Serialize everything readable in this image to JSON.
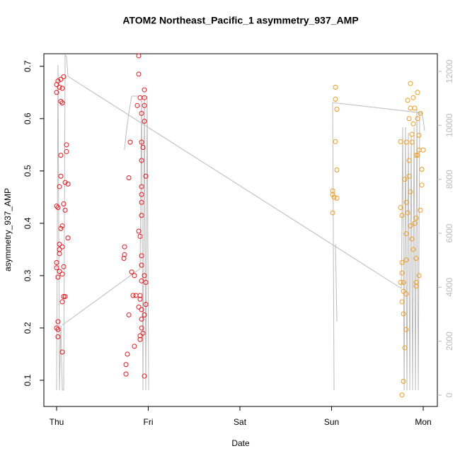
{
  "chart_data": {
    "type": "scatter",
    "title": "ATOM2 Northeast_Pacific_1 asymmetry_937_AMP",
    "xlabel": "Date",
    "ylabel": "asymmetry_937_AMP",
    "xlim": [
      -0.139,
      4.154
    ],
    "xticks": [
      {
        "value": 0,
        "label": "Thu"
      },
      {
        "value": 1,
        "label": "Fri"
      },
      {
        "value": 2,
        "label": "Sat"
      },
      {
        "value": 3,
        "label": "Sun"
      },
      {
        "value": 4,
        "label": "Mon"
      }
    ],
    "ylim": [
      0.05,
      0.724
    ],
    "yticks": [
      0.1,
      0.2,
      0.3,
      0.4,
      0.5,
      0.6,
      0.7
    ],
    "y2lim": [
      -419,
      12655
    ],
    "y2ticks": [
      0,
      2000,
      4000,
      6000,
      8000,
      10000,
      12000
    ],
    "y2color": "#bbbbbb",
    "series": [
      {
        "color": "#e8141c",
        "x": [
          0,
          0.015,
          0.046,
          0.077,
          0.031,
          0.062,
          0,
          0.046,
          0.062,
          0.046,
          0.108,
          0.108,
          0.046,
          0.031,
          0.093,
          0.124,
          0.077,
          0,
          0.015,
          0.093,
          0.062,
          0.046,
          0.124,
          0.031,
          0.062,
          0.031,
          0.077,
          0,
          0.031,
          0.062,
          0.015,
          0.093,
          0.077,
          0.062,
          0.015,
          0,
          0.015,
          0.015,
          0.062,
          0,
          0.031,
          0.741,
          0.741,
          0.734,
          0.757,
          0.757,
          0.772,
          0.788,
          0.788,
          0.803,
          0.819,
          0.834,
          0.849,
          0.865,
          0.849,
          0.88,
          0.896,
          0.896,
          0.896,
          0.911,
          0.911,
          0.927,
          0.927,
          0.927,
          0.927,
          0.927,
          0.927,
          0.927,
          0.927,
          0.927,
          0.927,
          0.911,
          0.911,
          0.927,
          0.927,
          0.927,
          0.911,
          0.911,
          0.942,
          0.958,
          0.958,
          0.958,
          0.958,
          0.973,
          0.973,
          0.958,
          0.958,
          0.973,
          0.942,
          0.958,
          0.896
        ],
        "values": [
          0.665,
          0.672,
          0.675,
          0.68,
          0.66,
          0.658,
          0.65,
          0.633,
          0.63,
          0.53,
          0.55,
          0.537,
          0.49,
          0.47,
          0.478,
          0.475,
          0.437,
          0.433,
          0.43,
          0.425,
          0.395,
          0.39,
          0.372,
          0.36,
          0.355,
          0.35,
          0.317,
          0.315,
          0.308,
          0.303,
          0.297,
          0.26,
          0.26,
          0.25,
          0.212,
          0.2,
          0.197,
          0.183,
          0.154,
          0.325,
          0.342,
          0.355,
          0.34,
          0.333,
          0.13,
          0.112,
          0.15,
          0.225,
          0.487,
          0.555,
          0.307,
          0.262,
          0.3,
          0.262,
          0.165,
          0.625,
          0.685,
          0.72,
          0.385,
          0.375,
          0.64,
          0.61,
          0.555,
          0.52,
          0.47,
          0.455,
          0.44,
          0.415,
          0.338,
          0.32,
          0.29,
          0.262,
          0.255,
          0.235,
          0.217,
          0.2,
          0.185,
          0.178,
          0.19,
          0.595,
          0.625,
          0.64,
          0.655,
          0.49,
          0.245,
          0.225,
          0.108,
          0.287,
          0.545,
          0.3,
          0.24
        ]
      },
      {
        "color": "#f39a1e",
        "x": [
          3.012,
          3.012,
          3.027,
          3.012,
          3.042,
          3.042,
          3.058,
          3.042,
          3.058,
          3.058,
          3.753,
          3.753,
          3.768,
          3.768,
          3.768,
          3.753,
          3.784,
          3.784,
          3.768,
          3.784,
          3.799,
          3.784,
          3.768,
          3.799,
          3.815,
          3.815,
          3.815,
          3.815,
          3.815,
          3.815,
          3.83,
          3.846,
          3.846,
          3.846,
          3.861,
          3.861,
          3.861,
          3.861,
          3.876,
          3.876,
          3.876,
          3.892,
          3.892,
          3.907,
          3.923,
          3.923,
          3.923,
          3.923,
          3.923,
          3.938,
          3.938,
          3.938,
          3.954,
          3.954,
          3.954,
          3.969,
          3.969,
          3.985,
          3.985,
          4.0,
          3.907,
          3.892,
          3.83
        ],
        "values": [
          0.462,
          0.455,
          0.45,
          0.42,
          0.66,
          0.637,
          0.618,
          0.556,
          0.502,
          0.448,
          0.556,
          0.43,
          0.415,
          0.325,
          0.305,
          0.287,
          0.287,
          0.27,
          0.25,
          0.227,
          0.162,
          0.098,
          0.072,
          0.484,
          0.555,
          0.44,
          0.38,
          0.33,
          0.265,
          0.197,
          0.635,
          0.6,
          0.52,
          0.49,
          0.667,
          0.62,
          0.46,
          0.395,
          0.57,
          0.555,
          0.37,
          0.64,
          0.59,
          0.62,
          0.53,
          0.41,
          0.333,
          0.287,
          0.28,
          0.65,
          0.6,
          0.53,
          0.568,
          0.54,
          0.3,
          0.425,
          0.61,
          0.503,
          0.473,
          0.54,
          0.4,
          0.35,
          0.42
        ]
      },
      {
        "color": "#bbbbbb",
        "kind": "line",
        "axis": "y2",
        "x": [
          0,
          0.015,
          0.031,
          0.046,
          0.062,
          0.077,
          0.093,
          0.108,
          0.124,
          3.761,
          3.776,
          3.792,
          3.807,
          3.822,
          3.838,
          3.853,
          3.869,
          3.884,
          3.9,
          3.915,
          3.931,
          3.946,
          3.961,
          3.985,
          4.0,
          4.015,
          null,
          0.062,
          0.911,
          0.927,
          0.942,
          0.958,
          0.973,
          0.988,
          1.004,
          null,
          0.741,
          0.757,
          0.788,
          0.819,
          0.896,
          null,
          3.042,
          3.058,
          null,
          3.027,
          3.012,
          4.0
        ],
        "values": [
          183,
          12235,
          183,
          2594,
          183,
          183,
          12602,
          12550,
          11816,
          3956,
          9930,
          183,
          9930,
          183,
          9720,
          183,
          9615,
          183,
          9930,
          183,
          10585,
          183,
          10454,
          10454,
          10192,
          9799,
          null,
          2594,
          4690,
          11083,
          183,
          11083,
          183,
          11083,
          183,
          null,
          9091,
          9668,
          10454,
          11083,
          11083,
          null,
          5607,
          2725,
          null,
          183,
          10847,
          10454
        ]
      }
    ]
  }
}
